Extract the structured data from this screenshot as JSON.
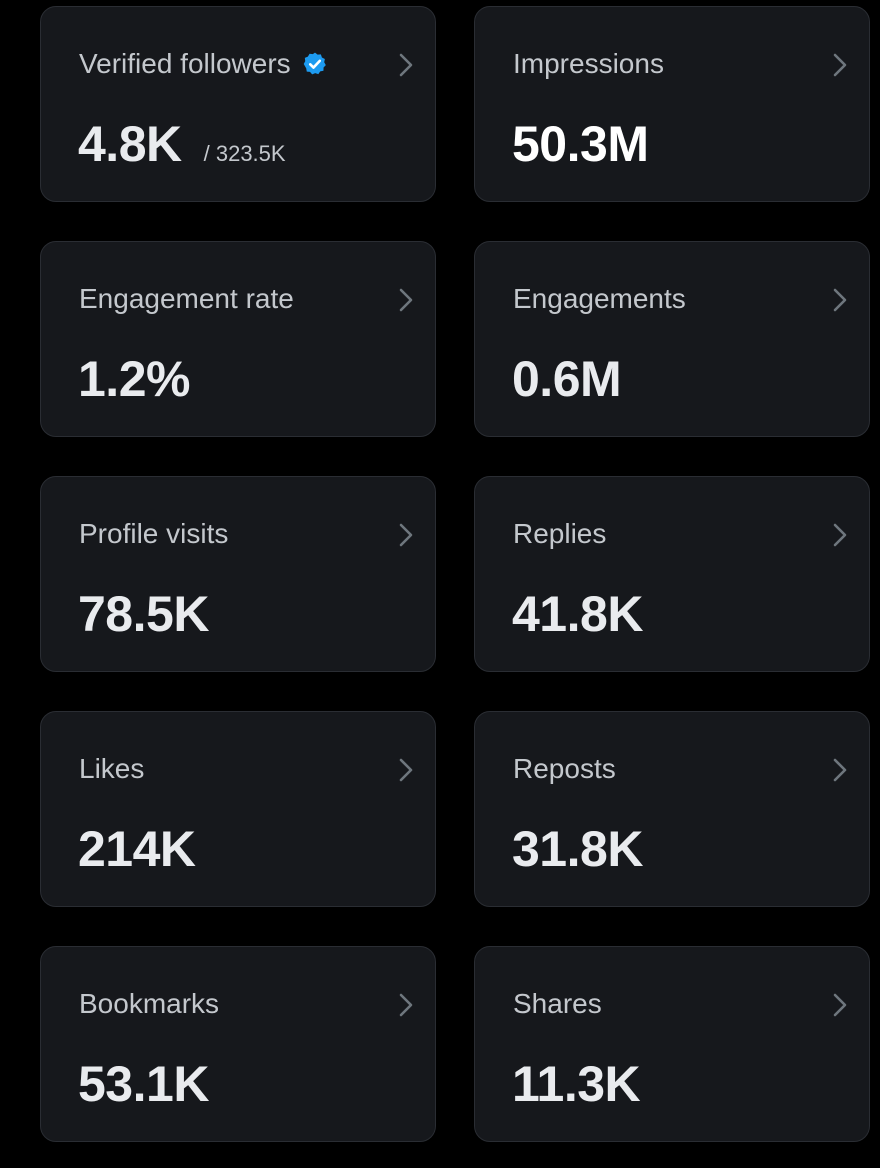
{
  "accent_color": "#1d9bf0",
  "cards": [
    {
      "label": "Verified followers",
      "value": "4.8K",
      "sub": "/ 323.5K",
      "icon": "verified-badge-icon"
    },
    {
      "label": "Impressions",
      "value": "50.3M"
    },
    {
      "label": "Engagement rate",
      "value": "1.2%"
    },
    {
      "label": "Engagements",
      "value": "0.6M"
    },
    {
      "label": "Profile visits",
      "value": "78.5K"
    },
    {
      "label": "Replies",
      "value": "41.8K"
    },
    {
      "label": "Likes",
      "value": "214K"
    },
    {
      "label": "Reposts",
      "value": "31.8K"
    },
    {
      "label": "Bookmarks",
      "value": "53.1K"
    },
    {
      "label": "Shares",
      "value": "11.3K"
    }
  ]
}
